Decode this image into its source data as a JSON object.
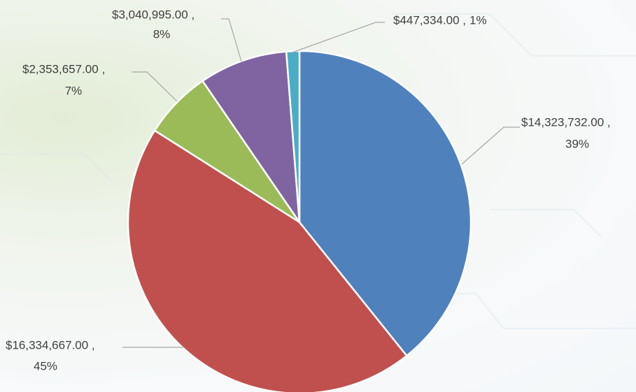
{
  "chart_data": {
    "type": "pie",
    "categories": [
      null,
      null,
      null,
      null,
      null
    ],
    "values": [
      14323732,
      16334667,
      2353657,
      3040995,
      447334
    ],
    "value_labels": [
      "$14,323,732.00 ,",
      "$16,334,667.00 ,",
      "$2,353,657.00 ,",
      "$3,040,995.00 ,",
      "$447,334.00 ,"
    ],
    "percent_labels": [
      "39%",
      "45%",
      "7%",
      "8%",
      "1%"
    ],
    "colors": [
      "#4f81bd",
      "#c0504d",
      "#9bbb59",
      "#8064a2",
      "#4bacc6"
    ]
  }
}
